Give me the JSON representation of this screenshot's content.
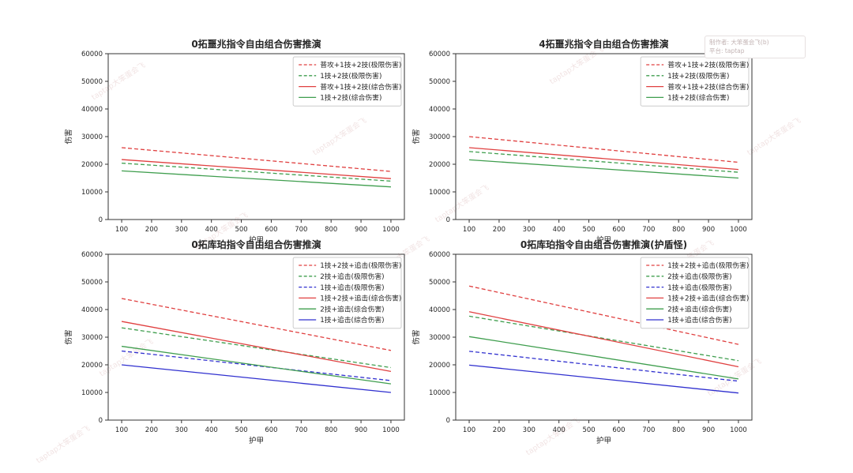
{
  "watermark_box": {
    "line1": "制作者: 大笨蛋会飞(b)",
    "line2": "平台: taptap"
  },
  "background_watermark": {
    "text": "taptap大笨蛋会飞",
    "color": "#e4c9c9"
  },
  "colors": {
    "red": "#e04040",
    "green": "#3f9e4e",
    "blue": "#3030cf",
    "axis": "#333333",
    "tick_text": "#262626"
  },
  "chart_data": [
    {
      "type": "line",
      "title": "0拓噩兆指令自由组合伤害推演",
      "xlabel": "护甲",
      "ylabel": "伤害",
      "xlim": [
        55,
        1045
      ],
      "ylim": [
        0,
        60000
      ],
      "xticks": [
        100,
        200,
        300,
        400,
        500,
        600,
        700,
        800,
        900,
        1000
      ],
      "yticks": [
        0,
        10000,
        20000,
        30000,
        40000,
        50000,
        60000
      ],
      "grid": false,
      "legend_position": "upper right",
      "x": [
        100,
        1000
      ],
      "series": [
        {
          "name": "普攻+1技+2技(极限伤害)",
          "color": "red",
          "style": "dashed",
          "values": [
            26000,
            17400
          ]
        },
        {
          "name": "1技+2技(极限伤害)",
          "color": "green",
          "style": "dashed",
          "values": [
            20400,
            13900
          ]
        },
        {
          "name": "普攻+1技+2技(综合伤害)",
          "color": "red",
          "style": "solid",
          "values": [
            21700,
            14800
          ]
        },
        {
          "name": "1技+2技(综合伤害)",
          "color": "green",
          "style": "solid",
          "values": [
            17600,
            11800
          ]
        }
      ]
    },
    {
      "type": "line",
      "title": "4拓噩兆指令自由组合伤害推演",
      "xlabel": "护甲",
      "ylabel": "伤害",
      "xlim": [
        55,
        1045
      ],
      "ylim": [
        0,
        60000
      ],
      "xticks": [
        100,
        200,
        300,
        400,
        500,
        600,
        700,
        800,
        900,
        1000
      ],
      "yticks": [
        0,
        10000,
        20000,
        30000,
        40000,
        50000,
        60000
      ],
      "grid": false,
      "legend_position": "upper right",
      "x": [
        100,
        1000
      ],
      "series": [
        {
          "name": "普攻+1技+2技(极限伤害)",
          "color": "red",
          "style": "dashed",
          "values": [
            30000,
            20700
          ]
        },
        {
          "name": "1技+2技(极限伤害)",
          "color": "green",
          "style": "dashed",
          "values": [
            24600,
            17100
          ]
        },
        {
          "name": "普攻+1技+2技(综合伤害)",
          "color": "red",
          "style": "solid",
          "values": [
            26000,
            18100
          ]
        },
        {
          "name": "1技+2技(综合伤害)",
          "color": "green",
          "style": "solid",
          "values": [
            21600,
            15000
          ]
        }
      ]
    },
    {
      "type": "line",
      "title": "0拓库珀指令自由组合伤害推演",
      "xlabel": "护甲",
      "ylabel": "伤害",
      "xlim": [
        55,
        1045
      ],
      "ylim": [
        0,
        60000
      ],
      "xticks": [
        100,
        200,
        300,
        400,
        500,
        600,
        700,
        800,
        900,
        1000
      ],
      "yticks": [
        0,
        10000,
        20000,
        30000,
        40000,
        50000,
        60000
      ],
      "grid": false,
      "legend_position": "upper right",
      "x": [
        100,
        1000
      ],
      "series": [
        {
          "name": "1技+2技+追击(极限伤害)",
          "color": "red",
          "style": "dashed",
          "values": [
            44000,
            25200
          ]
        },
        {
          "name": "2技+追击(极限伤害)",
          "color": "green",
          "style": "dashed",
          "values": [
            33400,
            19000
          ]
        },
        {
          "name": "1技+追击(极限伤害)",
          "color": "blue",
          "style": "dashed",
          "values": [
            25000,
            14300
          ]
        },
        {
          "name": "1技+2技+追击(综合伤害)",
          "color": "red",
          "style": "solid",
          "values": [
            35700,
            17600
          ]
        },
        {
          "name": "2技+追击(综合伤害)",
          "color": "green",
          "style": "solid",
          "values": [
            26700,
            13100
          ]
        },
        {
          "name": "1技+追击(综合伤害)",
          "color": "blue",
          "style": "solid",
          "values": [
            20000,
            10000
          ]
        }
      ]
    },
    {
      "type": "line",
      "title": "0拓库珀指令自由组合伤害推演(护盾怪)",
      "xlabel": "护甲",
      "ylabel": "伤害",
      "xlim": [
        55,
        1045
      ],
      "ylim": [
        0,
        60000
      ],
      "xticks": [
        100,
        200,
        300,
        400,
        500,
        600,
        700,
        800,
        900,
        1000
      ],
      "yticks": [
        0,
        10000,
        20000,
        30000,
        40000,
        50000,
        60000
      ],
      "grid": false,
      "legend_position": "upper right",
      "x": [
        100,
        1000
      ],
      "series": [
        {
          "name": "1技+2技+追击(极限伤害)",
          "color": "red",
          "style": "dashed",
          "values": [
            48500,
            27400
          ]
        },
        {
          "name": "2技+追击(极限伤害)",
          "color": "green",
          "style": "dashed",
          "values": [
            37600,
            21500
          ]
        },
        {
          "name": "1技+追击(极限伤害)",
          "color": "blue",
          "style": "dashed",
          "values": [
            24900,
            14100
          ]
        },
        {
          "name": "1技+2技+追击(综合伤害)",
          "color": "red",
          "style": "solid",
          "values": [
            39200,
            19300
          ]
        },
        {
          "name": "2技+追击(综合伤害)",
          "color": "green",
          "style": "solid",
          "values": [
            30200,
            14900
          ]
        },
        {
          "name": "1技+追击(综合伤害)",
          "color": "blue",
          "style": "solid",
          "values": [
            19900,
            9800
          ]
        }
      ]
    }
  ]
}
